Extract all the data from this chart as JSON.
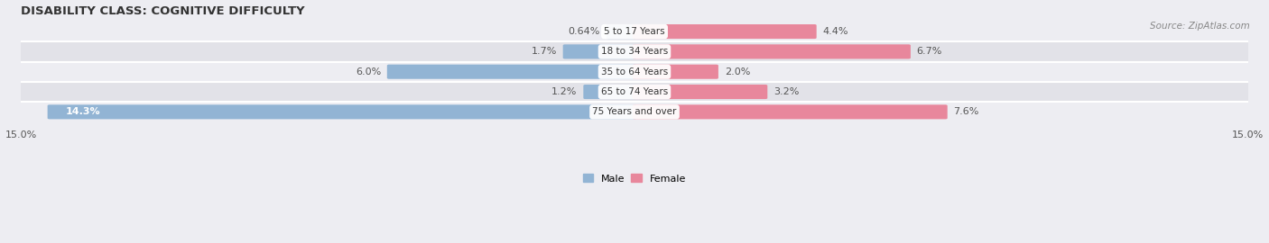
{
  "title": "DISABILITY CLASS: COGNITIVE DIFFICULTY",
  "source": "Source: ZipAtlas.com",
  "categories": [
    "5 to 17 Years",
    "18 to 34 Years",
    "35 to 64 Years",
    "65 to 74 Years",
    "75 Years and over"
  ],
  "male_values": [
    0.64,
    1.7,
    6.0,
    1.2,
    14.3
  ],
  "female_values": [
    4.4,
    6.7,
    2.0,
    3.2,
    7.6
  ],
  "male_color": "#92b4d4",
  "female_color": "#e8879c",
  "male_label": "Male",
  "female_label": "Female",
  "axis_max": 15.0,
  "row_bg_color_light": "#ededf2",
  "row_bg_color_dark": "#e2e2e8",
  "title_fontsize": 9.5,
  "bar_label_fontsize": 8,
  "tick_fontsize": 8,
  "source_fontsize": 7.5,
  "cat_label_fontsize": 7.5
}
